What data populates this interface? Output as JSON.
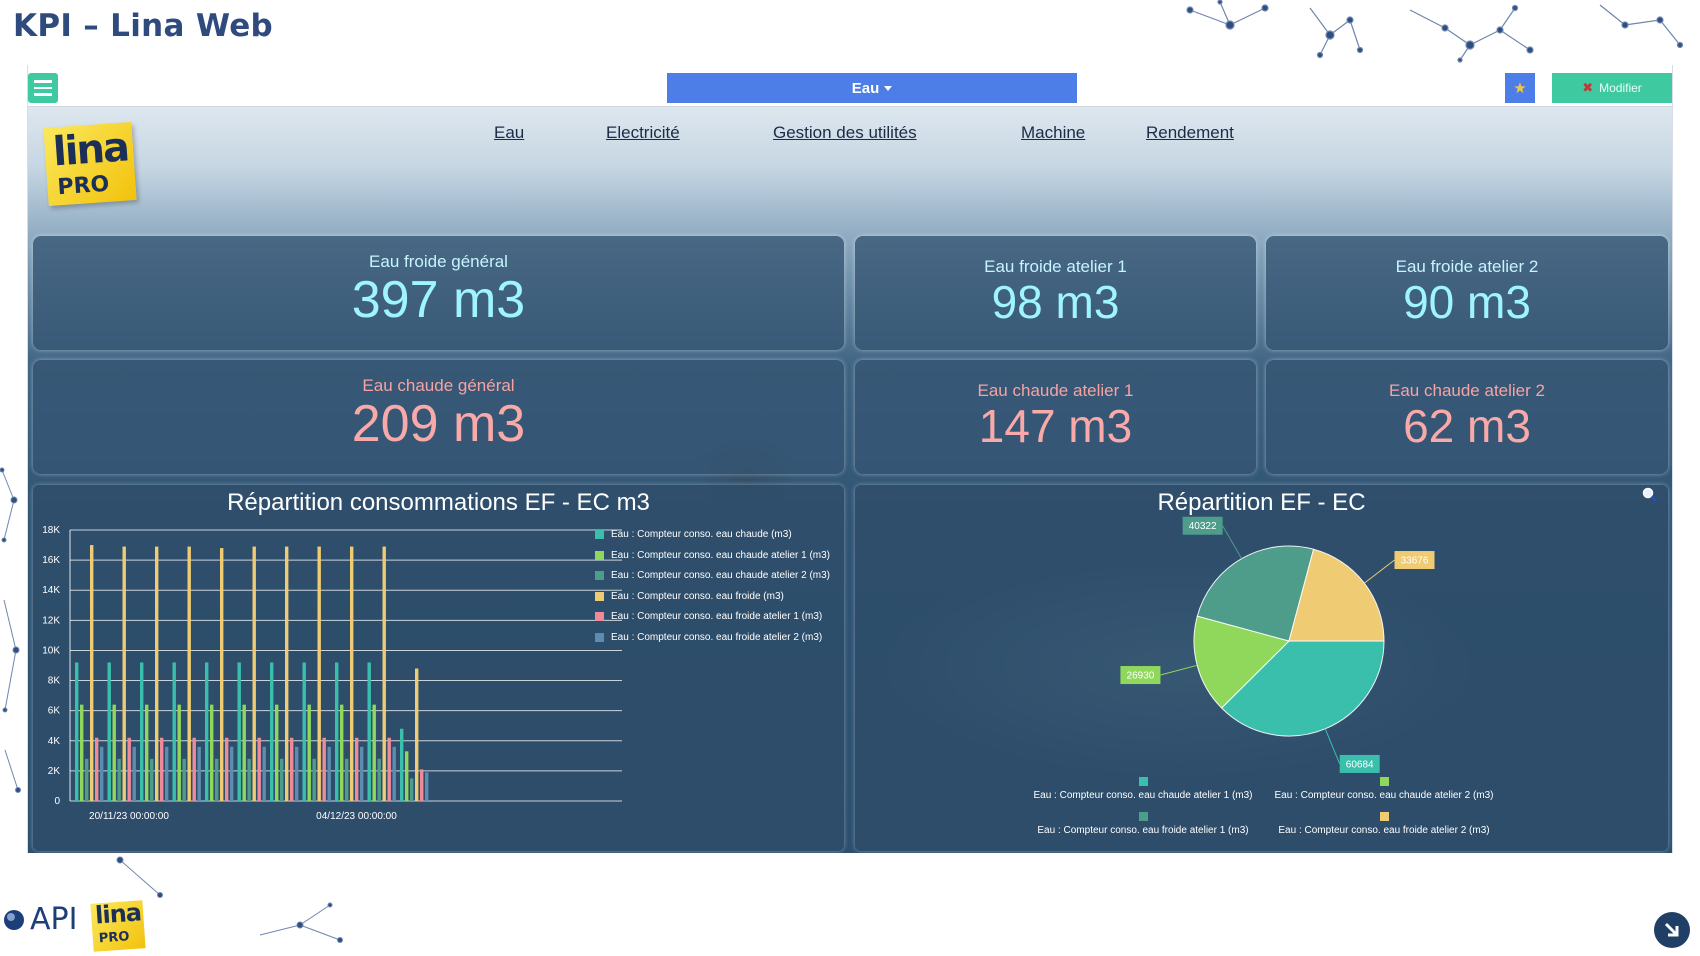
{
  "page_title": "KPI – Lina Web",
  "toolbar": {
    "dropdown_label": "Eau",
    "modifier_label": "Modifier"
  },
  "brand": {
    "logo_line1": "lina",
    "logo_line2": "PRO",
    "footer_api": "API",
    "footer_lina": "lina",
    "footer_pro": "PRO"
  },
  "nav": [
    "Eau",
    "Electricité",
    "Gestion des utilités",
    "Machine",
    "Rendement"
  ],
  "kpis": {
    "cold_general": {
      "label": "Eau froide général",
      "value": "397 m3"
    },
    "cold_1": {
      "label": "Eau froide atelier 1",
      "value": "98 m3"
    },
    "cold_2": {
      "label": "Eau froide atelier 2",
      "value": "90 m3"
    },
    "hot_general": {
      "label": "Eau chaude général",
      "value": "209 m3"
    },
    "hot_1": {
      "label": "Eau chaude atelier 1",
      "value": "147 m3"
    },
    "hot_2": {
      "label": "Eau chaude atelier 2",
      "value": "62 m3"
    }
  },
  "colors": {
    "teal": "#3bbfad",
    "green": "#8fd85c",
    "darkgreen": "#4e9c8a",
    "yellow": "#efcb73",
    "pink": "#ef8a98",
    "steel": "#5c8caf"
  },
  "chart_data": [
    {
      "type": "bar",
      "title": "Répartition consommations EF - EC m3",
      "ylim": [
        0,
        18000
      ],
      "yticks": [
        "0",
        "2K",
        "4K",
        "6K",
        "8K",
        "10K",
        "12K",
        "14K",
        "16K",
        "18K"
      ],
      "x_tick_labels": [
        "20/11/23 00:00:00",
        "04/12/23 00:00:00"
      ],
      "grid": true,
      "legend_position": "right",
      "series": [
        {
          "name": "Eau : Compteur conso. eau chaude (m3)",
          "color": "#3bbfad",
          "values": [
            9200,
            9200,
            9200,
            9200,
            9200,
            9200,
            9200,
            9200,
            9200,
            9200,
            4800
          ]
        },
        {
          "name": "Eau : Compteur conso. eau chaude atelier 1 (m3)",
          "color": "#8fd85c",
          "values": [
            6400,
            6400,
            6400,
            6400,
            6400,
            6400,
            6400,
            6400,
            6400,
            6400,
            3300
          ]
        },
        {
          "name": "Eau : Compteur conso. eau chaude atelier 2 (m3)",
          "color": "#4e9c8a",
          "values": [
            2800,
            2800,
            2800,
            2800,
            2800,
            2800,
            2800,
            2800,
            2800,
            2800,
            1500
          ]
        },
        {
          "name": "Eau : Compteur conso. eau froide (m3)",
          "color": "#efcb73",
          "values": [
            17000,
            16900,
            16900,
            16900,
            16800,
            16900,
            16900,
            16900,
            16900,
            16900,
            8800
          ]
        },
        {
          "name": "Eau : Compteur conso. eau froide atelier 1 (m3)",
          "color": "#ef8a98",
          "values": [
            4200,
            4200,
            4200,
            4200,
            4200,
            4200,
            4200,
            4200,
            4200,
            4200,
            2100
          ]
        },
        {
          "name": "Eau : Compteur conso. eau froide atelier 2 (m3)",
          "color": "#5c8caf",
          "values": [
            3600,
            3600,
            3600,
            3600,
            3600,
            3600,
            3600,
            3600,
            3600,
            3600,
            1900
          ]
        }
      ]
    },
    {
      "type": "pie",
      "title": "Répartition EF - EC",
      "legend_position": "bottom",
      "slices": [
        {
          "name": "Eau : Compteur conso. eau chaude atelier 1 (m3)",
          "value": 60684,
          "color": "#3bbfad"
        },
        {
          "name": "Eau : Compteur conso. eau chaude atelier 2 (m3)",
          "value": 26930,
          "color": "#8fd85c"
        },
        {
          "name": "Eau : Compteur conso. eau froide atelier 1 (m3)",
          "value": 40322,
          "color": "#4e9c8a"
        },
        {
          "name": "Eau : Compteur conso. eau froide atelier 2 (m3)",
          "value": 33676,
          "color": "#efcb73"
        }
      ]
    }
  ]
}
